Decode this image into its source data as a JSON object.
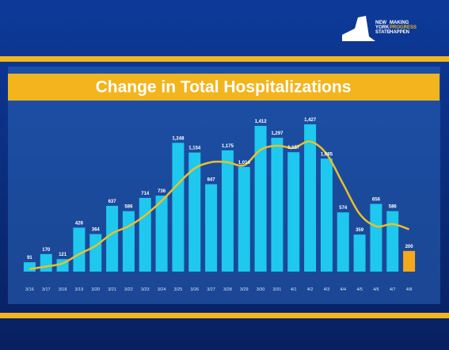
{
  "chart_data": {
    "type": "bar",
    "title": "Change in Total Hospitalizations",
    "logo": [
      "NEW",
      "YORK",
      "STATE",
      "MAKING",
      "PROGRESS",
      "HAPPEN"
    ],
    "categories": [
      "3/16",
      "3/17",
      "3/18",
      "3/19",
      "3/20",
      "3/21",
      "3/22",
      "3/23",
      "3/24",
      "3/25",
      "3/26",
      "3/27",
      "3/28",
      "3/29",
      "3/30",
      "3/31",
      "4/1",
      "4/2",
      "4/3",
      "4/4",
      "4/5",
      "4/6",
      "4/7",
      "4/8"
    ],
    "values": [
      91,
      170,
      121,
      426,
      364,
      637,
      586,
      714,
      736,
      1248,
      1154,
      847,
      1175,
      1014,
      1412,
      1297,
      1157,
      1427,
      1095,
      574,
      359,
      656,
      586,
      200
    ],
    "value_labels": [
      "91",
      "170",
      "121",
      "426",
      "364",
      "637",
      "586",
      "714",
      "736",
      "1,248",
      "1,154",
      "847",
      "1,175",
      "1,014",
      "1,412",
      "1,297",
      "1,157",
      "1,427",
      "1,095",
      "574",
      "359",
      "656",
      "586",
      "200"
    ],
    "colors": [
      "#1ec8ef",
      "#1ec8ef",
      "#1ec8ef",
      "#1ec8ef",
      "#1ec8ef",
      "#1ec8ef",
      "#1ec8ef",
      "#1ec8ef",
      "#1ec8ef",
      "#1ec8ef",
      "#1ec8ef",
      "#1ec8ef",
      "#1ec8ef",
      "#1ec8ef",
      "#1ec8ef",
      "#1ec8ef",
      "#1ec8ef",
      "#1ec8ef",
      "#1ec8ef",
      "#1ec8ef",
      "#1ec8ef",
      "#1ec8ef",
      "#1ec8ef",
      "#f5a81c"
    ],
    "trend": {
      "color": "#e8c12a",
      "values": [
        25,
        50,
        80,
        170,
        250,
        370,
        440,
        545,
        685,
        850,
        1000,
        1060,
        1060,
        1030,
        1180,
        1220,
        1200,
        1260,
        1140,
        850,
        560,
        440,
        460,
        410
      ]
    }
  }
}
